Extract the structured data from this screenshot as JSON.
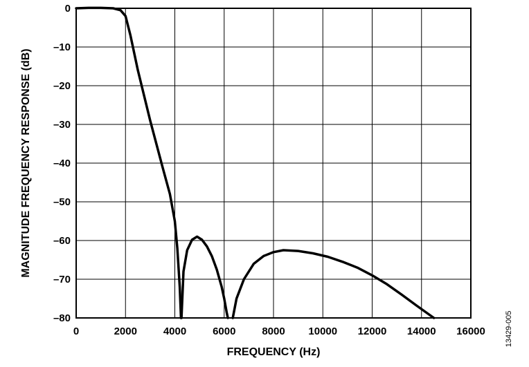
{
  "chart_data": {
    "type": "line",
    "xlabel": "FREQUENCY (Hz)",
    "ylabel": "MAGNITUDE FREQUENCY RESPONSE (dB)",
    "xlim": [
      0,
      16000
    ],
    "ylim": [
      -80,
      0
    ],
    "xticks": [
      0,
      2000,
      4000,
      6000,
      8000,
      10000,
      12000,
      14000,
      16000
    ],
    "xtick_labels": [
      "0",
      "2000",
      "4000",
      "6000",
      "8000",
      "10000",
      "12000",
      "14000",
      "16000"
    ],
    "yticks": [
      0,
      -10,
      -20,
      -30,
      -40,
      -50,
      -60,
      -70,
      -80
    ],
    "ytick_labels": [
      "0",
      "–10",
      "–20",
      "–30",
      "–40",
      "–50",
      "–60",
      "–70",
      "–80"
    ],
    "grid": true,
    "line_color": "#000000",
    "series": [
      {
        "segments": [
          {
            "x": [
              0,
              500,
              1000,
              1500,
              1800,
              2000,
              2200,
              2500,
              3000,
              3500,
              3800,
              4000,
              4100,
              4200,
              4250
            ],
            "y": [
              0,
              0.1,
              0.1,
              0,
              -0.5,
              -2,
              -7,
              -16,
              -29,
              -41,
              -48,
              -55,
              -62,
              -72,
              -80
            ]
          },
          {
            "x": [
              4270,
              4350,
              4500,
              4700,
              4900,
              5100,
              5300,
              5500,
              5700,
              5900,
              6000,
              6100,
              6150
            ],
            "y": [
              -80,
              -68,
              -62.5,
              -59.8,
              -59,
              -59.8,
              -61.5,
              -64,
              -67.5,
              -72,
              -75,
              -78.5,
              -80
            ]
          },
          {
            "x": [
              6350,
              6500,
              6800,
              7200,
              7600,
              8000,
              8400,
              9000,
              9600,
              10200,
              10800,
              11400,
              12000,
              12600,
              13200,
              13800,
              14500
            ],
            "y": [
              -80,
              -75,
              -70,
              -66,
              -64,
              -63,
              -62.5,
              -62.7,
              -63.3,
              -64.2,
              -65.5,
              -67,
              -69,
              -71.3,
              -74,
              -76.8,
              -80
            ]
          }
        ]
      }
    ]
  },
  "figure_id": "13429-005"
}
